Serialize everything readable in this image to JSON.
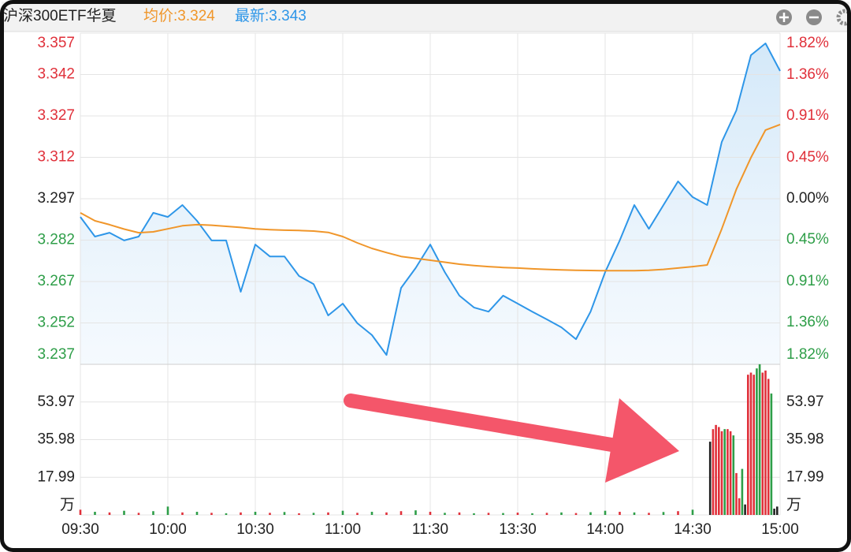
{
  "chart_data": [
    {
      "type": "line",
      "title": "沪深300ETF华夏",
      "legend_texts": [
        "均价:3.324",
        "最新:3.343"
      ],
      "legend_colors": [
        "#f0962a",
        "#2e96e8"
      ],
      "x": [
        0,
        5,
        10,
        15,
        20,
        25,
        30,
        35,
        40,
        45,
        50,
        55,
        60,
        65,
        70,
        75,
        80,
        85,
        90,
        95,
        100,
        105,
        110,
        115,
        120,
        125,
        130,
        135,
        140,
        145,
        150,
        155,
        160,
        165,
        170,
        175,
        180,
        185,
        190,
        195,
        200,
        205,
        210,
        215,
        220,
        225,
        230,
        235,
        240
      ],
      "xlim": [
        0,
        240
      ],
      "xticks": [
        {
          "value": 0,
          "label": "09:30"
        },
        {
          "value": 30,
          "label": "10:00"
        },
        {
          "value": 60,
          "label": "10:30"
        },
        {
          "value": 90,
          "label": "11:00"
        },
        {
          "value": 120,
          "label": "11:30"
        },
        {
          "value": 150,
          "label": "13:30"
        },
        {
          "value": 180,
          "label": "14:00"
        },
        {
          "value": 210,
          "label": "14:30"
        },
        {
          "value": 240,
          "label": "15:00"
        }
      ],
      "series": [
        {
          "name": "最新",
          "color": "#2e96e8",
          "values": [
            3.2904,
            3.2833,
            3.2847,
            3.2819,
            3.2833,
            3.2919,
            3.2904,
            3.2947,
            3.289,
            3.2819,
            3.2819,
            3.2633,
            3.2804,
            3.2761,
            3.2761,
            3.269,
            3.2661,
            3.2547,
            3.259,
            3.2519,
            3.2476,
            3.2404,
            3.2647,
            3.2719,
            3.2804,
            3.2704,
            3.2619,
            3.2576,
            3.2561,
            3.2619,
            3.259,
            3.2561,
            3.2533,
            3.2504,
            3.2461,
            3.2561,
            3.2704,
            3.2819,
            3.2947,
            3.2861,
            3.2947,
            3.3033,
            3.2976,
            3.2947,
            3.3176,
            3.329,
            3.349,
            3.3533,
            3.3433
          ]
        },
        {
          "name": "均价",
          "color": "#f0962a",
          "values": [
            3.2919,
            3.289,
            3.2876,
            3.286,
            3.2847,
            3.285,
            3.2861,
            3.2872,
            3.2876,
            3.2874,
            3.287,
            3.2866,
            3.2861,
            3.2858,
            3.2856,
            3.2855,
            3.2853,
            3.2848,
            3.2833,
            3.281,
            3.279,
            3.2775,
            3.2761,
            3.2754,
            3.2747,
            3.274,
            3.2733,
            3.2728,
            3.2724,
            3.2721,
            3.2719,
            3.2716,
            3.2714,
            3.2712,
            3.2711,
            3.271,
            3.2709,
            3.2709,
            3.2709,
            3.2711,
            3.2714,
            3.2719,
            3.2724,
            3.273,
            3.2861,
            3.3004,
            3.3119,
            3.3219,
            3.3239
          ]
        }
      ],
      "ylim": [
        3.237,
        3.357
      ],
      "yticks": [
        3.357,
        3.342,
        3.327,
        3.312,
        3.297,
        3.282,
        3.267,
        3.252,
        3.237
      ],
      "y2lim": [
        -1.82,
        1.82
      ],
      "y2ticks": [
        {
          "value": 1.82,
          "label": "1.82%"
        },
        {
          "value": 1.36,
          "label": "1.36%"
        },
        {
          "value": 0.91,
          "label": "0.91%"
        },
        {
          "value": 0.45,
          "label": "0.45%"
        },
        {
          "value": 0,
          "label": "0.00%"
        },
        {
          "value": -0.45,
          "label": "0.45%"
        },
        {
          "value": -0.91,
          "label": "0.91%"
        },
        {
          "value": -1.36,
          "label": "1.36%"
        },
        {
          "value": -1.82,
          "label": "1.82%"
        }
      ],
      "up_color": "#e0303a",
      "down_color": "#2e9e48",
      "flat_color": "#222222",
      "grid": true
    },
    {
      "type": "bar",
      "x": [
        0,
        5,
        10,
        15,
        20,
        25,
        30,
        35,
        40,
        45,
        50,
        55,
        60,
        65,
        70,
        75,
        80,
        85,
        90,
        95,
        100,
        105,
        110,
        115,
        120,
        125,
        130,
        135,
        140,
        145,
        150,
        155,
        160,
        165,
        170,
        175,
        180,
        185,
        190,
        195,
        200,
        205,
        210,
        216,
        217,
        218,
        219,
        220,
        221,
        222,
        223,
        224,
        225,
        226,
        227,
        228,
        229,
        230,
        231,
        232,
        233,
        234,
        235,
        236,
        237,
        238,
        239
      ],
      "xlim": [
        0,
        240
      ],
      "values": [
        2.5,
        1.5,
        1.2,
        2.0,
        1.0,
        1.8,
        4.0,
        1.2,
        1.5,
        1.0,
        0.8,
        1.2,
        1.5,
        1.0,
        1.4,
        0.8,
        1.0,
        1.2,
        2.0,
        1.0,
        1.5,
        1.2,
        1.8,
        2.2,
        1.5,
        1.0,
        1.2,
        0.8,
        1.0,
        0.9,
        1.1,
        0.8,
        1.0,
        1.2,
        0.9,
        1.3,
        2.0,
        1.5,
        1.2,
        1.0,
        1.4,
        1.8,
        2.5,
        35,
        41,
        43,
        42,
        40,
        41,
        41,
        40,
        38,
        20,
        8,
        22,
        5,
        67,
        68,
        67,
        70,
        72,
        68,
        69,
        65,
        58,
        3,
        4
      ],
      "colors": [
        "#e0303a",
        "#2e9e48",
        "#e0303a",
        "#2e9e48",
        "#e0303a",
        "#2e9e48",
        "#2e9e48",
        "#e0303a",
        "#2e9e48",
        "#e0303a",
        "#2e9e48",
        "#e0303a",
        "#2e9e48",
        "#e0303a",
        "#2e9e48",
        "#e0303a",
        "#2e9e48",
        "#e0303a",
        "#2e9e48",
        "#e0303a",
        "#2e9e48",
        "#e0303a",
        "#e0303a",
        "#2e9e48",
        "#e0303a",
        "#2e9e48",
        "#e0303a",
        "#2e9e48",
        "#e0303a",
        "#2e9e48",
        "#e0303a",
        "#2e9e48",
        "#e0303a",
        "#2e9e48",
        "#e0303a",
        "#2e9e48",
        "#2e9e48",
        "#e0303a",
        "#2e9e48",
        "#e0303a",
        "#2e9e48",
        "#e0303a",
        "#2e9e48",
        "#222222",
        "#e0303a",
        "#e0303a",
        "#e0303a",
        "#e0303a",
        "#2e9e48",
        "#e0303a",
        "#e0303a",
        "#2e9e48",
        "#e0303a",
        "#e0303a",
        "#2e9e48",
        "#222222",
        "#e0303a",
        "#e0303a",
        "#e0303a",
        "#2e9e48",
        "#2e9e48",
        "#e0303a",
        "#e0303a",
        "#e0303a",
        "#2e9e48",
        "#222222",
        "#222222"
      ],
      "ylim": [
        0,
        71.96
      ],
      "yticks": [
        53.97,
        35.98,
        17.99,
        {
          "value": 0,
          "label": "万"
        }
      ],
      "grid": true
    }
  ]
}
